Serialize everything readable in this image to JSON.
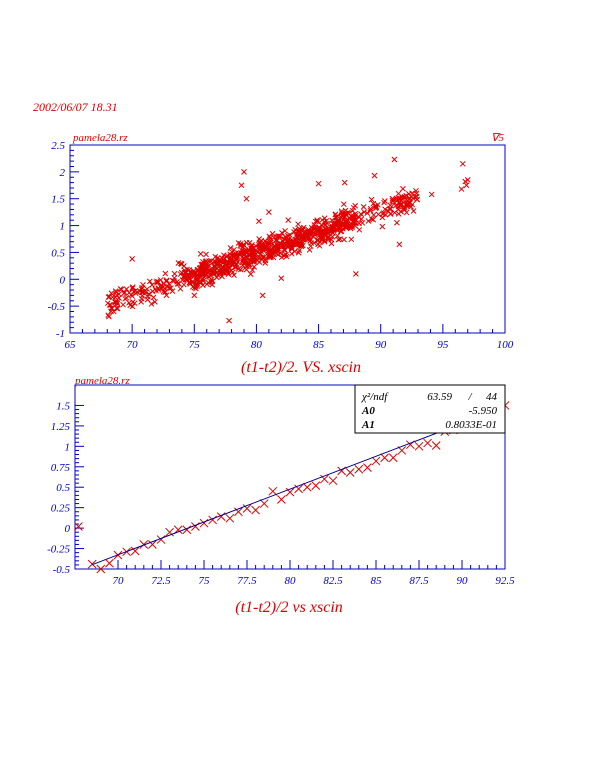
{
  "datestamp": "2002/06/07   18.31",
  "colors": {
    "axis": "#0000cc",
    "marker": "#e00000",
    "fit_line": "#00008b",
    "text": "#e00000"
  },
  "chart_data": [
    {
      "type": "scatter",
      "corner_label_left": "pamela28.rz",
      "corner_label_right": "∇5",
      "title": "(t1-t2)/2. VS. xscin",
      "xlim": [
        65,
        100
      ],
      "ylim": [
        -1,
        2.5
      ],
      "x_ticks": [
        "65",
        "70",
        "75",
        "80",
        "85",
        "90",
        "95",
        "100"
      ],
      "y_ticks": [
        "-1",
        "-0.5",
        "0",
        "0.5",
        "1",
        "1.5",
        "2",
        "2.5"
      ],
      "marker": "x",
      "band": {
        "x_range": [
          68,
          93
        ],
        "slope": 0.0803,
        "intercept": -5.95,
        "spread": 0.12,
        "n_points": 900
      },
      "outliers": [
        {
          "x": 79.0,
          "y": 2.0
        },
        {
          "x": 78.8,
          "y": 1.75
        },
        {
          "x": 79.2,
          "y": 1.5
        },
        {
          "x": 81.0,
          "y": 1.25
        },
        {
          "x": 80.2,
          "y": 1.08
        },
        {
          "x": 85.0,
          "y": 1.78
        },
        {
          "x": 87.1,
          "y": 1.8
        },
        {
          "x": 89.5,
          "y": 1.93
        },
        {
          "x": 91.1,
          "y": 2.23
        },
        {
          "x": 94.1,
          "y": 1.58
        },
        {
          "x": 96.6,
          "y": 2.15
        },
        {
          "x": 96.5,
          "y": 1.68
        },
        {
          "x": 96.9,
          "y": 1.75
        },
        {
          "x": 97.0,
          "y": 1.85
        },
        {
          "x": 96.8,
          "y": 1.82
        },
        {
          "x": 70.0,
          "y": 0.38
        },
        {
          "x": 77.8,
          "y": -0.77
        },
        {
          "x": 88.0,
          "y": 0.1
        },
        {
          "x": 91.5,
          "y": 0.65
        },
        {
          "x": 80.5,
          "y": -0.3
        },
        {
          "x": 82.0,
          "y": 0.02
        },
        {
          "x": 75.0,
          "y": -0.3
        }
      ]
    },
    {
      "type": "scatter",
      "corner_label_left": "pamela28.rz",
      "title": "(t1-t2)/2 vs xscin",
      "xlim": [
        67.5,
        92.5
      ],
      "ylim": [
        -0.5,
        1.75
      ],
      "x_ticks": [
        "70",
        "72.5",
        "75",
        "77.5",
        "80",
        "82.5",
        "85",
        "87.5",
        "90",
        "92.5"
      ],
      "y_ticks": [
        "-0.5",
        "-0.25",
        "0",
        "0.25",
        "0.5",
        "0.75",
        "1",
        "1.25",
        "1.5"
      ],
      "marker": "x",
      "series": [
        {
          "x": [
            67.7,
            68.5,
            69.0,
            69.5,
            70.0,
            70.5,
            71.0,
            71.5,
            72.0,
            72.5,
            73.0,
            73.5,
            74.0,
            74.5,
            75.0,
            75.5,
            76.0,
            76.5,
            77.0,
            77.5,
            78.0,
            78.5,
            79.0,
            79.5,
            80.0,
            80.5,
            81.0,
            81.5,
            82.0,
            82.5,
            83.0,
            83.5,
            84.0,
            84.5,
            85.0,
            85.5,
            86.0,
            86.5,
            87.0,
            87.5,
            88.0,
            88.5,
            89.0,
            89.5,
            90.0,
            90.5,
            91.0,
            91.5,
            92.0,
            92.5
          ],
          "y": [
            0.02,
            -0.44,
            -0.5,
            -0.43,
            -0.33,
            -0.29,
            -0.28,
            -0.2,
            -0.2,
            -0.14,
            -0.05,
            -0.02,
            -0.02,
            0.02,
            0.06,
            0.1,
            0.14,
            0.12,
            0.2,
            0.24,
            0.22,
            0.3,
            0.45,
            0.35,
            0.44,
            0.48,
            0.5,
            0.52,
            0.6,
            0.58,
            0.7,
            0.68,
            0.72,
            0.74,
            0.82,
            0.86,
            0.86,
            0.95,
            1.02,
            1.0,
            1.04,
            1.01,
            1.18,
            1.2,
            1.22,
            1.28,
            1.32,
            1.36,
            1.4,
            1.5
          ]
        }
      ],
      "fit": {
        "a0": -5.95,
        "a1": 0.08033
      },
      "stats_box": {
        "row1_label": "χ²/ndf",
        "row1_v1": "63.59",
        "row1_sep": "/",
        "row1_v2": "44",
        "row2_label": "A0",
        "row2_value": "-5.950",
        "row3_label": "A1",
        "row3_value": "0.8033E-01"
      }
    }
  ]
}
